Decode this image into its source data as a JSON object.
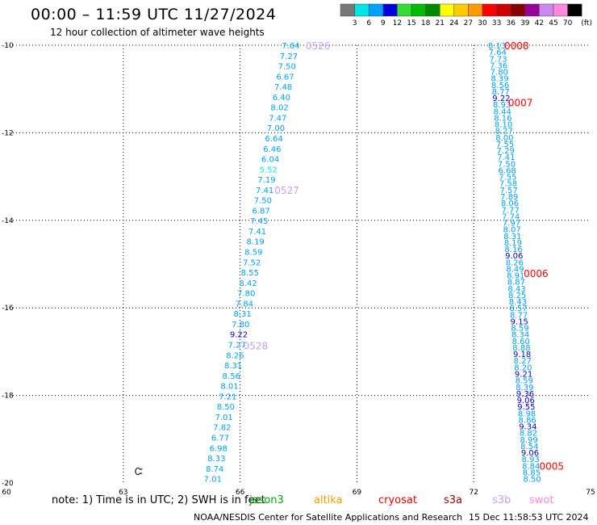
{
  "title": "00:00 – 11:59 UTC 11/27/2024",
  "subtitle": "12 hour collection of altimeter wave heights",
  "legend": {
    "unit": "(ft)",
    "bins": [
      {
        "label": "3",
        "color": "#777777"
      },
      {
        "label": "6",
        "color": "#00e5e5"
      },
      {
        "label": "9",
        "color": "#00a0ff"
      },
      {
        "label": "12",
        "color": "#0000dd"
      },
      {
        "label": "15",
        "color": "#33dd33"
      },
      {
        "label": "18",
        "color": "#00bb00"
      },
      {
        "label": "21",
        "color": "#008800"
      },
      {
        "label": "24",
        "color": "#ffff00"
      },
      {
        "label": "27",
        "color": "#ffcc00"
      },
      {
        "label": "30",
        "color": "#ff9900"
      },
      {
        "label": "33",
        "color": "#ff0000"
      },
      {
        "label": "36",
        "color": "#cc0000"
      },
      {
        "label": "39",
        "color": "#880000"
      },
      {
        "label": "42",
        "color": "#990099"
      },
      {
        "label": "45",
        "color": "#cc88ee"
      },
      {
        "label": "70",
        "color": "#ff88dd"
      },
      {
        "label": "",
        "color": "#000000"
      }
    ]
  },
  "chart_data": {
    "type": "scatter",
    "xlim": [
      60,
      75
    ],
    "ylim": [
      -20,
      -10
    ],
    "x_ticks": [
      "60",
      "63",
      "66",
      "69",
      "72",
      "75"
    ],
    "y_ticks": [
      {
        "value": -10,
        "label": "-10"
      },
      {
        "value": -12,
        "label": "-12"
      },
      {
        "value": -14,
        "label": "-14"
      },
      {
        "value": -16,
        "label": "-16"
      },
      {
        "value": -18,
        "label": "-18"
      },
      {
        "value": -20,
        "label": "-20"
      }
    ],
    "grid": true,
    "time_labels": [
      {
        "text": "0526",
        "x": 68.0,
        "y": -10.0,
        "color": "#c8a0f0"
      },
      {
        "text": "0527",
        "x": 67.2,
        "y": -13.3,
        "color": "#c8a0f0"
      },
      {
        "text": "0528",
        "x": 66.4,
        "y": -16.85,
        "color": "#c8a0f0"
      },
      {
        "text": "0008",
        "x": 73.1,
        "y": -10.0,
        "color": "#ff0000"
      },
      {
        "text": "0007",
        "x": 73.2,
        "y": -11.3,
        "color": "#ff0000"
      },
      {
        "text": "0006",
        "x": 73.6,
        "y": -15.2,
        "color": "#ff0000"
      },
      {
        "text": "0005",
        "x": 74.0,
        "y": -19.6,
        "color": "#ff0000"
      }
    ],
    "tracks": [
      {
        "start": [
          67.3,
          -10.0
        ],
        "end": [
          65.3,
          -19.9
        ],
        "values": [
          "7.64",
          "7.27",
          "7.50",
          "6.67",
          "7.48",
          "6.40",
          "8.02",
          "7.47",
          "7.00",
          "6.64",
          "6.46",
          "6.04",
          "5.52",
          "7.19",
          "7.41",
          "7.50",
          "6.87",
          "7.45",
          "7.41",
          "8.19",
          "8.59",
          "7.52",
          "8.55",
          "8.42",
          "7.80",
          "7.84",
          "8.31",
          "7.80",
          "9.22",
          "7.27",
          "8.26",
          "8.31",
          "8.56",
          "8.01",
          "7.21",
          "8.50",
          "7.01",
          "7.82",
          "6.77",
          "6.98",
          "8.33",
          "8.74",
          "7.01"
        ]
      },
      {
        "start": [
          72.6,
          -10.0
        ],
        "end": [
          73.5,
          -19.9
        ],
        "values": [
          "8.13",
          "7.64",
          "7.73",
          "7.36",
          "7.80",
          "8.39",
          "8.56",
          "8.77",
          "9.22",
          "8.93",
          "8.44",
          "8.16",
          "8.10",
          "8.27",
          "8.00",
          "7.55",
          "7.29",
          "7.41",
          "7.50",
          "6.68",
          "7.55",
          "7.58",
          "7.57",
          "7.89",
          "8.06",
          "7.77",
          "7.74",
          "7.97",
          "8.07",
          "8.31",
          "8.19",
          "8.16",
          "9.06",
          "8.26",
          "8.49",
          "8.91",
          "8.87",
          "8.43",
          "8.25",
          "8.43",
          "8.57",
          "8.77",
          "9.15",
          "8.59",
          "8.34",
          "8.60",
          "8.88",
          "9.18",
          "8.27",
          "8.20",
          "9.21",
          "8.59",
          "8.39",
          "9.36",
          "9.06",
          "9.55",
          "8.98",
          "8.86",
          "9.34",
          "8.82",
          "8.99",
          "8.54",
          "9.06",
          "8.93",
          "8.84",
          "8.85",
          "8.50"
        ]
      }
    ]
  },
  "island_marker": "Ꮸ",
  "footer": {
    "note": "note: 1) Time is in UTC; 2) SWH is in feet",
    "satellites": [
      {
        "name": "jason3",
        "color": "#00aa00"
      },
      {
        "name": "altika",
        "color": "#ff9900"
      },
      {
        "name": "cryosat",
        "color": "#ee0000"
      },
      {
        "name": "s3a",
        "color": "#990000"
      },
      {
        "name": "s3b",
        "color": "#c8a0f0"
      },
      {
        "name": "swot",
        "color": "#ff88dd"
      }
    ],
    "credit": "NOAA/NESDIS Center for Satellite Applications and Research",
    "timestamp": "15 Dec 11:58:53 UTC 2024"
  }
}
